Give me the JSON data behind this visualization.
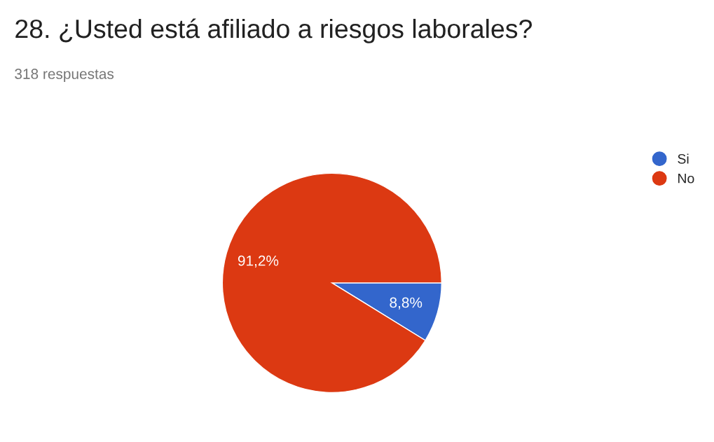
{
  "chart_data": {
    "type": "pie",
    "title": "28. ¿Usted está afiliado a riesgos laborales?",
    "subtitle": "318 respuestas",
    "categories": [
      "Si",
      "No"
    ],
    "values": [
      8.8,
      91.2
    ],
    "colors": [
      "#3366cc",
      "#dc3912"
    ],
    "value_labels": [
      "8,8%",
      "91,2%"
    ],
    "legend": "top right"
  }
}
